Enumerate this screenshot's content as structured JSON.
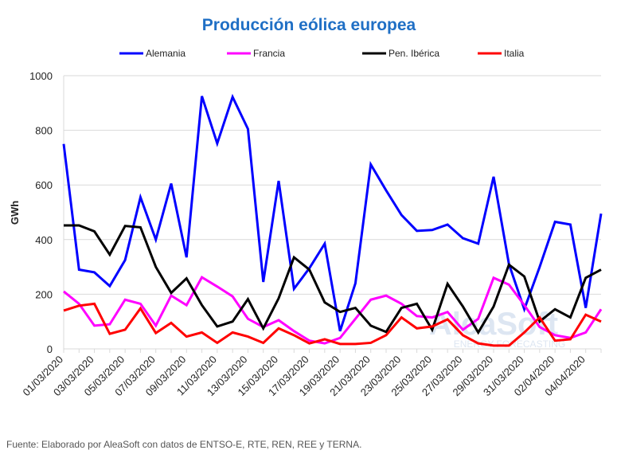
{
  "chart_data": {
    "type": "line",
    "title": "Producción eólica europea",
    "ylabel": "GWh",
    "xlabel": "",
    "ylim": [
      0,
      1000
    ],
    "yticks": [
      0,
      200,
      400,
      600,
      800,
      1000
    ],
    "grid": true,
    "legend_position": "top",
    "x": [
      "01/03/2020",
      "02/03/2020",
      "03/03/2020",
      "04/03/2020",
      "05/03/2020",
      "06/03/2020",
      "07/03/2020",
      "08/03/2020",
      "09/03/2020",
      "10/03/2020",
      "11/03/2020",
      "12/03/2020",
      "13/03/2020",
      "14/03/2020",
      "15/03/2020",
      "16/03/2020",
      "17/03/2020",
      "18/03/2020",
      "19/03/2020",
      "20/03/2020",
      "21/03/2020",
      "22/03/2020",
      "23/03/2020",
      "24/03/2020",
      "25/03/2020",
      "26/03/2020",
      "27/03/2020",
      "28/03/2020",
      "29/03/2020",
      "30/03/2020",
      "31/03/2020",
      "01/04/2020",
      "02/04/2020",
      "03/04/2020",
      "04/04/2020",
      "05/04/2020"
    ],
    "xtick_labels": [
      "01/03/2020",
      "03/03/2020",
      "05/03/2020",
      "07/03/2020",
      "09/03/2020",
      "11/03/2020",
      "13/03/2020",
      "15/03/2020",
      "17/03/2020",
      "19/03/2020",
      "21/03/2020",
      "23/03/2020",
      "25/03/2020",
      "27/03/2020",
      "29/03/2020",
      "31/03/2020",
      "02/04/2020",
      "04/04/2020"
    ],
    "series": [
      {
        "name": "Alemania",
        "color": "#0000FF",
        "values": [
          750,
          290,
          280,
          230,
          325,
          555,
          400,
          605,
          335,
          925,
          752,
          922,
          805,
          245,
          615,
          220,
          295,
          385,
          65,
          240,
          675,
          580,
          490,
          432,
          435,
          455,
          405,
          385,
          630,
          310,
          145,
          300,
          465,
          455,
          150,
          495
        ]
      },
      {
        "name": "Francia",
        "color": "#FF00FF",
        "values": [
          210,
          165,
          85,
          90,
          180,
          165,
          85,
          195,
          160,
          262,
          228,
          192,
          110,
          80,
          105,
          65,
          30,
          20,
          40,
          110,
          180,
          195,
          165,
          120,
          115,
          135,
          70,
          110,
          260,
          235,
          160,
          80,
          50,
          40,
          60,
          145
        ]
      },
      {
        "name": "Pen. Ibérica",
        "color": "#000000",
        "values": [
          452,
          452,
          430,
          345,
          450,
          445,
          300,
          205,
          258,
          160,
          82,
          100,
          182,
          75,
          185,
          335,
          290,
          170,
          135,
          150,
          85,
          62,
          150,
          165,
          70,
          238,
          155,
          60,
          155,
          308,
          265,
          100,
          145,
          115,
          260,
          290
        ]
      },
      {
        "name": "Italia",
        "color": "#FF0000",
        "values": [
          140,
          158,
          165,
          55,
          70,
          148,
          58,
          95,
          45,
          60,
          22,
          60,
          45,
          22,
          75,
          50,
          20,
          35,
          18,
          18,
          22,
          50,
          115,
          75,
          82,
          108,
          50,
          20,
          12,
          12,
          60,
          115,
          30,
          35,
          125,
          100
        ]
      }
    ]
  },
  "watermark": {
    "brand": "AleaSoft",
    "tagline": "ENERGY FORECASTING"
  },
  "source": "Fuente: Elaborado por AleaSoft con datos de ENTSO-E, RTE, REN, REE y TERNA."
}
